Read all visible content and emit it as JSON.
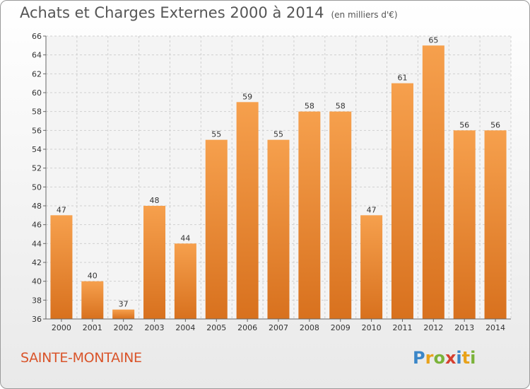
{
  "chart_data": {
    "type": "bar",
    "title": "Achats et Charges Externes 2000 à 2014",
    "subtitle": "(en milliers d'€)",
    "categories": [
      "2000",
      "2001",
      "2002",
      "2003",
      "2004",
      "2005",
      "2006",
      "2007",
      "2008",
      "2009",
      "2010",
      "2011",
      "2012",
      "2013",
      "2014"
    ],
    "values": [
      47,
      40,
      37,
      48,
      44,
      55,
      59,
      55,
      58,
      58,
      47,
      61,
      65,
      56,
      56
    ],
    "ylim": [
      36,
      66
    ],
    "yticks": [
      "36",
      "38",
      "40",
      "42",
      "44",
      "46",
      "48",
      "50",
      "52",
      "54",
      "56",
      "58",
      "60",
      "62",
      "64",
      "66"
    ],
    "grid": true,
    "bar_color_top": "#f6a04d",
    "bar_color_bottom": "#d8711e"
  },
  "footer": {
    "town": "SAINTE-MONTAINE",
    "logo_text": "Proxiti"
  }
}
